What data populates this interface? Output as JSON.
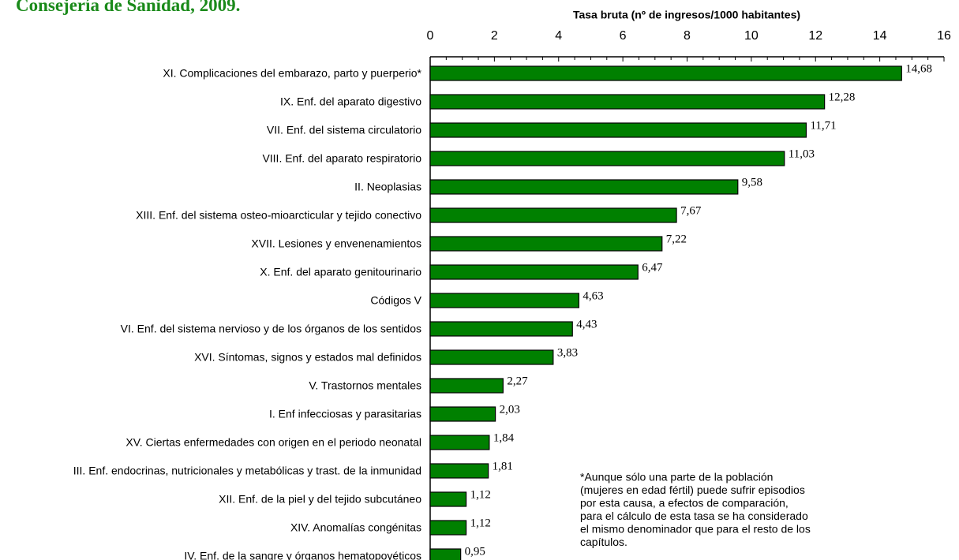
{
  "chart_data": {
    "type": "barh",
    "title": "Consejería de Sanidad, 2009.",
    "x_label": "Tasa bruta (nº de ingresos/1000 habitantes)",
    "categories": [
      "XI. Complicaciones del embarazo, parto y puerperio*",
      "IX. Enf. del aparato digestivo",
      "VII. Enf. del sistema circulatorio",
      "VIII. Enf. del aparato respiratorio",
      "II. Neoplasias",
      "XIII. Enf. del sistema osteo-mioarcticular y tejido conectivo",
      "XVII. Lesiones y envenenamientos",
      "X. Enf. del aparato genitourinario",
      "Códigos V",
      "VI. Enf. del sistema nervioso y de los órganos de los sentidos",
      "XVI. Síntomas, signos y estados mal definidos",
      "V. Trastornos mentales",
      "I. Enf infecciosas y parasitarias",
      "XV. Ciertas enfermedades con origen en el periodo neonatal",
      "III. Enf. endocrinas, nutricionales y metabólicas y trast. de la inmunidad",
      "XII. Enf. de la piel y del tejido subcutáneo",
      "XIV. Anomalías congénitas",
      "IV. Enf. de la sangre y órganos hematopoyéticos"
    ],
    "values": [
      14.68,
      12.28,
      11.71,
      11.03,
      9.58,
      7.67,
      7.22,
      6.47,
      4.63,
      4.43,
      3.83,
      2.27,
      2.03,
      1.84,
      1.81,
      1.12,
      1.12,
      0.95
    ],
    "value_labels": [
      "14,68",
      "12,28",
      "11,71",
      "11,03",
      "9,58",
      "7,67",
      "7,22",
      "6,47",
      "4,63",
      "4,43",
      "3,83",
      "2,27",
      "2,03",
      "1,84",
      "1,81",
      "1,12",
      "1,12",
      "0,95"
    ],
    "color": "#008000",
    "xlim": [
      0,
      16
    ],
    "xticks": [
      0,
      2,
      4,
      6,
      8,
      10,
      12,
      14,
      16
    ],
    "note": [
      "*Aunque sólo una parte de la población",
      "(mujeres en edad fértil) puede sufrir episodios",
      "por esta causa, a efectos de comparación,",
      "para el cálculo de esta tasa se ha considerado",
      "el mismo denominador que para el resto de los",
      "capítulos."
    ]
  }
}
